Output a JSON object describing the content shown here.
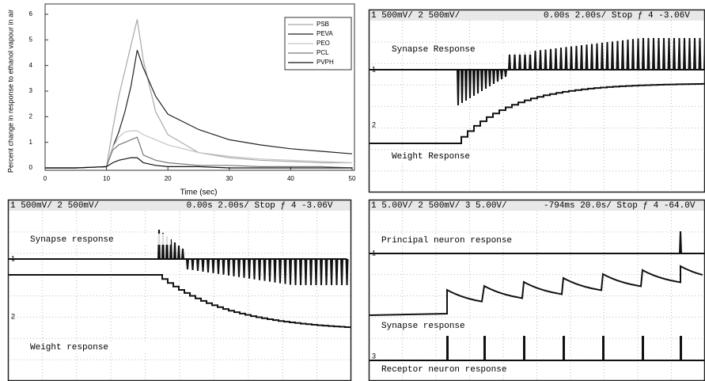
{
  "chart_data": {
    "type": "line",
    "x_label": "Time (sec)",
    "y_label": "Percent change in response to ethanol vapour in air",
    "x": [
      0,
      5,
      10,
      11,
      12,
      13,
      14,
      15,
      16,
      18,
      20,
      25,
      30,
      35,
      40,
      45,
      50
    ],
    "series": [
      {
        "name": "PSB",
        "color": "#a8a8a8",
        "values": [
          0,
          0,
          0.05,
          1.5,
          2.8,
          3.8,
          4.8,
          5.8,
          4.2,
          2.2,
          1.3,
          0.6,
          0.4,
          0.3,
          0.25,
          0.2,
          0.2
        ]
      },
      {
        "name": "PEVA",
        "color": "#222222",
        "values": [
          0,
          0,
          0.05,
          0.8,
          1.4,
          2.2,
          3.2,
          4.6,
          3.9,
          2.8,
          2.1,
          1.5,
          1.1,
          0.9,
          0.75,
          0.65,
          0.55
        ]
      },
      {
        "name": "PEO",
        "color": "#c4c4c4",
        "values": [
          0,
          0,
          0.05,
          0.8,
          1.2,
          1.4,
          1.45,
          1.45,
          1.3,
          1.1,
          0.9,
          0.6,
          0.45,
          0.35,
          0.3,
          0.25,
          0.2
        ]
      },
      {
        "name": "PCL",
        "color": "#777777",
        "values": [
          0,
          0,
          0.05,
          0.7,
          0.9,
          1.0,
          1.1,
          1.2,
          0.5,
          0.3,
          0.2,
          0.1,
          0.1,
          0.05,
          0.05,
          0.05,
          0
        ]
      },
      {
        "name": "PVPH",
        "color": "#111111",
        "values": [
          0,
          0,
          0.05,
          0.2,
          0.3,
          0.35,
          0.4,
          0.4,
          0.2,
          0.1,
          0.05,
          0.05,
          0,
          0,
          0,
          0,
          0
        ]
      }
    ],
    "xlim": [
      0,
      50
    ],
    "xticks": [
      0,
      10,
      20,
      30,
      40,
      50
    ],
    "ylim": [
      0,
      6
    ],
    "yticks": [
      0,
      1,
      2,
      3,
      4,
      5,
      6
    ],
    "legend": "upper right"
  },
  "panels": [
    {
      "left": "1 500mV/  2 500mV/",
      "right": "0.00s  2.00s/  Stop  ƒ 4  -3.06V",
      "markers": [
        "1",
        "2"
      ],
      "labels": [
        "Synapse Response",
        "Weight Response"
      ]
    },
    {
      "left": "1 500mV/  2 500mV/",
      "right": "0.00s  2.00s/  Stop  ƒ 4  -3.06V",
      "markers": [
        "1",
        "2"
      ],
      "labels": [
        "Synapse response",
        "Weight response"
      ]
    },
    {
      "left": "1 5.00V/  2 500mV/  3 5.00V/",
      "right": "-794ms  20.0s/  Stop  ƒ 4  -64.0V",
      "markers": [
        "1",
        "3"
      ],
      "labels": [
        "Principal neuron response",
        "Synapse response",
        "Receptor neuron response"
      ]
    }
  ]
}
